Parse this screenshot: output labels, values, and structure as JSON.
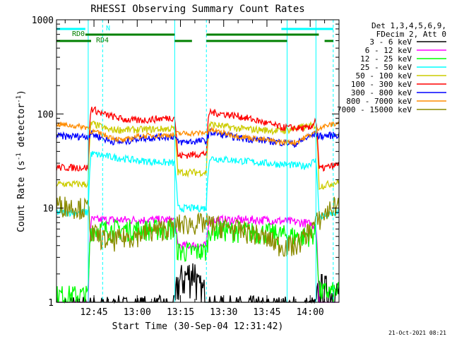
{
  "chart_data": {
    "type": "line",
    "title": "RHESSI Observing Summary Count Rates",
    "xlabel": "Start Time (30-Sep-04 12:31:42)",
    "ylabel_main": "Count Rate (s",
    "ylabel_sup1": "-1",
    "ylabel_mid": " detector",
    "ylabel_sup2": "-1",
    "ylabel_end": ")",
    "y_scale": "log",
    "ylim": [
      1,
      1000
    ],
    "xlim": [
      "12:32",
      "14:10"
    ],
    "x_ticks": [
      "12:45",
      "13:00",
      "13:15",
      "13:30",
      "13:45",
      "14:00"
    ],
    "y_ticks": [
      "1",
      "10",
      "100",
      "1000"
    ],
    "grid": false,
    "timestamp": "21-Oct-2021 08:21",
    "legend_header": [
      "Det 1,3,4,5,6,9,",
      "FDecim 2, Att 0"
    ],
    "series": [
      {
        "name": "3 - 6 keV",
        "color": "#000000",
        "x": [
          "12:32",
          "12:43",
          "12:44",
          "13:13",
          "13:14",
          "13:20",
          "13:21",
          "13:24",
          "13:25",
          "14:02",
          "14:03",
          "14:10"
        ],
        "values": [
          0.8,
          0.8,
          0.8,
          0.8,
          1.6,
          2.2,
          1.4,
          1.2,
          0.8,
          0.8,
          1.4,
          1.2
        ]
      },
      {
        "name": "6 - 12 keV",
        "color": "#ff00ff",
        "x": [
          "12:32",
          "12:43",
          "12:44",
          "13:00",
          "13:13",
          "13:14",
          "13:24",
          "13:25",
          "13:45",
          "13:58",
          "14:02",
          "14:03",
          "14:10"
        ],
        "values": [
          0.8,
          0.8,
          7.5,
          7.5,
          7.5,
          4.0,
          4.0,
          7.5,
          7.5,
          7.0,
          6.5,
          0.8,
          0.8
        ]
      },
      {
        "name": "12 - 25 keV",
        "color": "#00ff00",
        "x": [
          "12:32",
          "12:43",
          "12:44",
          "13:00",
          "13:13",
          "13:14",
          "13:24",
          "13:25",
          "13:45",
          "13:57",
          "14:02",
          "14:03",
          "14:10"
        ],
        "values": [
          1.2,
          1.2,
          6.0,
          6.0,
          6.0,
          3.5,
          3.5,
          6.0,
          5.5,
          5.0,
          5.5,
          1.3,
          1.3
        ]
      },
      {
        "name": "25 - 50 keV",
        "color": "#00ffff",
        "x": [
          "12:32",
          "12:43",
          "12:44",
          "12:48",
          "13:00",
          "13:13",
          "13:14",
          "13:24",
          "13:25",
          "13:45",
          "13:58",
          "14:02",
          "14:03",
          "14:10"
        ],
        "values": [
          9,
          9,
          38,
          36,
          32,
          30,
          10,
          10,
          34,
          30,
          28,
          32,
          8,
          9
        ]
      },
      {
        "name": "50 - 100 keV",
        "color": "#cccc00",
        "x": [
          "12:32",
          "12:43",
          "12:44",
          "12:50",
          "13:00",
          "13:13",
          "13:14",
          "13:24",
          "13:25",
          "13:35",
          "13:50",
          "14:02",
          "14:03",
          "14:10"
        ],
        "values": [
          18,
          18,
          80,
          68,
          68,
          70,
          24,
          24,
          78,
          70,
          66,
          76,
          17,
          19
        ]
      },
      {
        "name": "100 - 300 keV",
        "color": "#ff0000",
        "x": [
          "12:32",
          "12:43",
          "12:44",
          "12:48",
          "12:55",
          "13:00",
          "13:13",
          "13:14",
          "13:24",
          "13:25",
          "13:35",
          "13:50",
          "14:00",
          "14:02",
          "14:03",
          "14:10"
        ],
        "values": [
          27,
          27,
          115,
          100,
          88,
          85,
          92,
          36,
          38,
          105,
          95,
          72,
          70,
          88,
          26,
          29
        ]
      },
      {
        "name": "300 - 800 keV",
        "color": "#0000ff",
        "x": [
          "12:32",
          "12:43",
          "12:44",
          "12:50",
          "12:55",
          "13:00",
          "13:13",
          "13:14",
          "13:24",
          "13:25",
          "13:35",
          "13:50",
          "13:55",
          "14:02",
          "14:03",
          "14:10"
        ],
        "values": [
          58,
          58,
          62,
          52,
          50,
          55,
          58,
          50,
          52,
          64,
          56,
          50,
          48,
          62,
          58,
          60
        ]
      },
      {
        "name": "800 - 7000 keV",
        "color": "#ff8c00",
        "x": [
          "12:32",
          "12:43",
          "12:44",
          "12:50",
          "12:55",
          "13:00",
          "13:13",
          "13:14",
          "13:24",
          "13:25",
          "13:35",
          "13:50",
          "13:55",
          "14:02",
          "14:03",
          "14:10"
        ],
        "values": [
          78,
          72,
          66,
          58,
          52,
          58,
          60,
          62,
          63,
          68,
          58,
          50,
          50,
          64,
          72,
          80
        ]
      },
      {
        "name": "7000 - 15000 keV",
        "color": "#8b8b00",
        "x": [
          "12:32",
          "12:43",
          "12:44",
          "12:50",
          "13:00",
          "13:13",
          "13:14",
          "13:24",
          "13:25",
          "13:40",
          "13:50",
          "13:55",
          "13:58",
          "14:02",
          "14:03",
          "14:10"
        ],
        "values": [
          11,
          10,
          5.5,
          4.5,
          5.2,
          6.5,
          6.8,
          7.0,
          6.8,
          5.5,
          4.0,
          4.0,
          5.0,
          7.0,
          7.5,
          11.5
        ]
      }
    ],
    "annotations": {
      "labels": [
        "N",
        "RD0",
        "RD4"
      ],
      "bars": [
        {
          "label": "N",
          "color": "#00ffff",
          "segments": [
            [
              "12:32",
              "12:42"
            ],
            [
              "13:50",
              "14:08"
            ]
          ]
        },
        {
          "label": "RD0",
          "color": "#008000",
          "segments": [
            [
              "12:42",
              "13:13"
            ],
            [
              "13:24",
              "14:03"
            ]
          ]
        },
        {
          "label": "RD4",
          "color": "#008000",
          "segments": [
            [
              "12:32",
              "12:44"
            ],
            [
              "13:13",
              "13:19"
            ],
            [
              "13:24",
              "13:52"
            ],
            [
              "14:05",
              "14:08"
            ]
          ]
        }
      ],
      "vlines_solid": [
        "12:43",
        "13:13",
        "13:52",
        "14:02"
      ],
      "vlines_dashed": [
        "12:48",
        "13:24",
        "14:08"
      ]
    }
  }
}
